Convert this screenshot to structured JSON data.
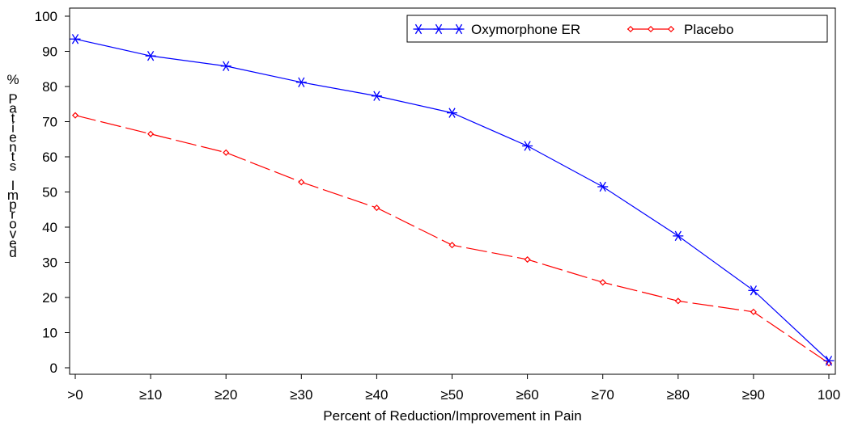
{
  "chart_data": {
    "type": "line",
    "title": "",
    "xlabel": "Percent of Reduction/Improvement in Pain",
    "ylabel": "% Patients Improved",
    "categories": [
      ">0",
      "≥10",
      "≥20",
      "≥30",
      "≥40",
      "≥50",
      "≥60",
      "≥70",
      "≥80",
      "≥90",
      "100"
    ],
    "ylim": [
      0,
      100
    ],
    "yticks": [
      0,
      10,
      20,
      30,
      40,
      50,
      60,
      70,
      80,
      90,
      100
    ],
    "grid": false,
    "legend_position": "top-right",
    "series": [
      {
        "name": "Oxymorphone ER",
        "color": "#0000ff",
        "marker": "asterisk",
        "line_style": "solid",
        "values": [
          93.5,
          88.7,
          85.8,
          81.2,
          77.3,
          72.5,
          63.1,
          51.5,
          37.5,
          22.0,
          2.0
        ]
      },
      {
        "name": "Placebo",
        "color": "#ff0000",
        "marker": "diamond",
        "line_style": "dashed",
        "values": [
          71.8,
          66.5,
          61.2,
          52.8,
          45.5,
          34.9,
          30.8,
          24.3,
          19.0,
          15.9,
          1.3
        ]
      }
    ]
  }
}
